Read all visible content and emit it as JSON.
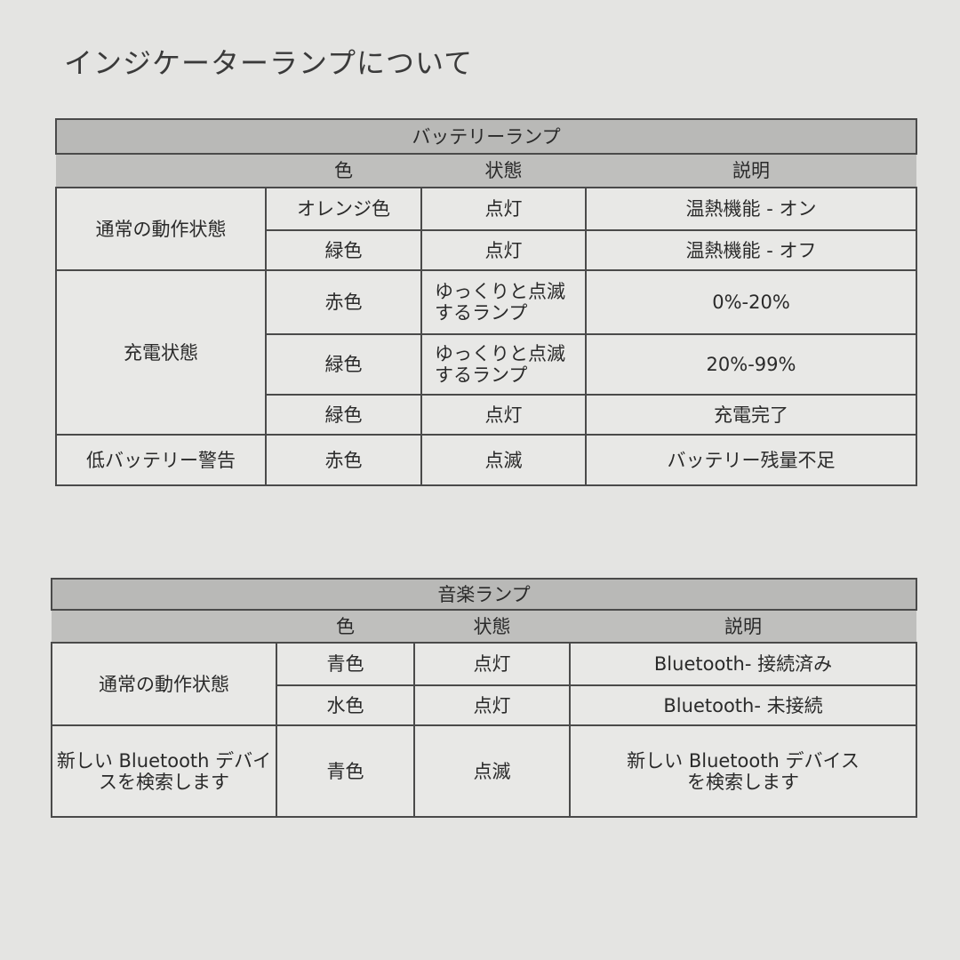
{
  "title": "インジケーターランプについて",
  "battery_table": {
    "title": "バッテリーランプ",
    "headers": [
      "",
      "色",
      "状態",
      "説明"
    ],
    "groups": [
      {
        "label": "通常の動作状態",
        "rows": [
          {
            "color": "オレンジ色",
            "state": "点灯",
            "desc": "温熱機能 - オン"
          },
          {
            "color": "緑色",
            "state": "点灯",
            "desc": "温熱機能 - オフ"
          }
        ]
      },
      {
        "label": "充電状態",
        "rows": [
          {
            "color": "赤色",
            "state": "ゆっくりと点滅するランプ",
            "desc": "0%-20%"
          },
          {
            "color": "緑色",
            "state": "ゆっくりと点滅するランプ",
            "desc": "20%-99%"
          },
          {
            "color": "緑色",
            "state": "点灯",
            "desc": "充電完了"
          }
        ]
      },
      {
        "label": "低バッテリー警告",
        "rows": [
          {
            "color": "赤色",
            "state": "点滅",
            "desc": "バッテリー残量不足"
          }
        ]
      }
    ]
  },
  "music_table": {
    "title": "音楽ランプ",
    "headers": [
      "",
      "色",
      "状態",
      "説明"
    ],
    "groups": [
      {
        "label": "通常の動作状態",
        "rows": [
          {
            "color": "青色",
            "state": "点灯",
            "desc": "Bluetooth- 接続済み"
          },
          {
            "color": "水色",
            "state": "点灯",
            "desc": "Bluetooth- 未接続"
          }
        ]
      },
      {
        "label": "新しい Bluetooth デバイスを検索します",
        "rows": [
          {
            "color": "青色",
            "state": "点滅",
            "desc": "新しい Bluetooth デバイスを検索します"
          }
        ]
      }
    ]
  }
}
